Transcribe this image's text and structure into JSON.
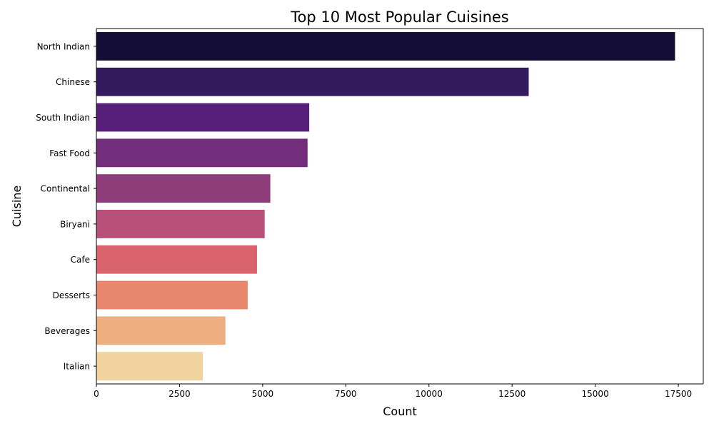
{
  "chart_data": {
    "type": "bar",
    "orientation": "horizontal",
    "title": "Top 10 Most Popular Cuisines",
    "xlabel": "Count",
    "ylabel": "Cuisine",
    "categories": [
      "North Indian",
      "Chinese",
      "South Indian",
      "Fast Food",
      "Continental",
      "Biryani",
      "Cafe",
      "Desserts",
      "Beverages",
      "Italian"
    ],
    "values": [
      17400,
      13000,
      6400,
      6350,
      5230,
      5060,
      4830,
      4550,
      3880,
      3200
    ],
    "xlim": [
      0,
      18250
    ],
    "xticks": [
      0,
      2500,
      5000,
      7500,
      10000,
      12500,
      15000,
      17500
    ],
    "xtick_labels": [
      "0",
      "2500",
      "5000",
      "7500",
      "10000",
      "12500",
      "15000",
      "17500"
    ],
    "grid": false,
    "legend": "none",
    "bar_colors": [
      "#140e36",
      "#331a5e",
      "#571f7a",
      "#722e7a",
      "#8f3c7a",
      "#b7507a",
      "#d8636c",
      "#e8876e",
      "#edae80",
      "#f2d29e"
    ]
  }
}
